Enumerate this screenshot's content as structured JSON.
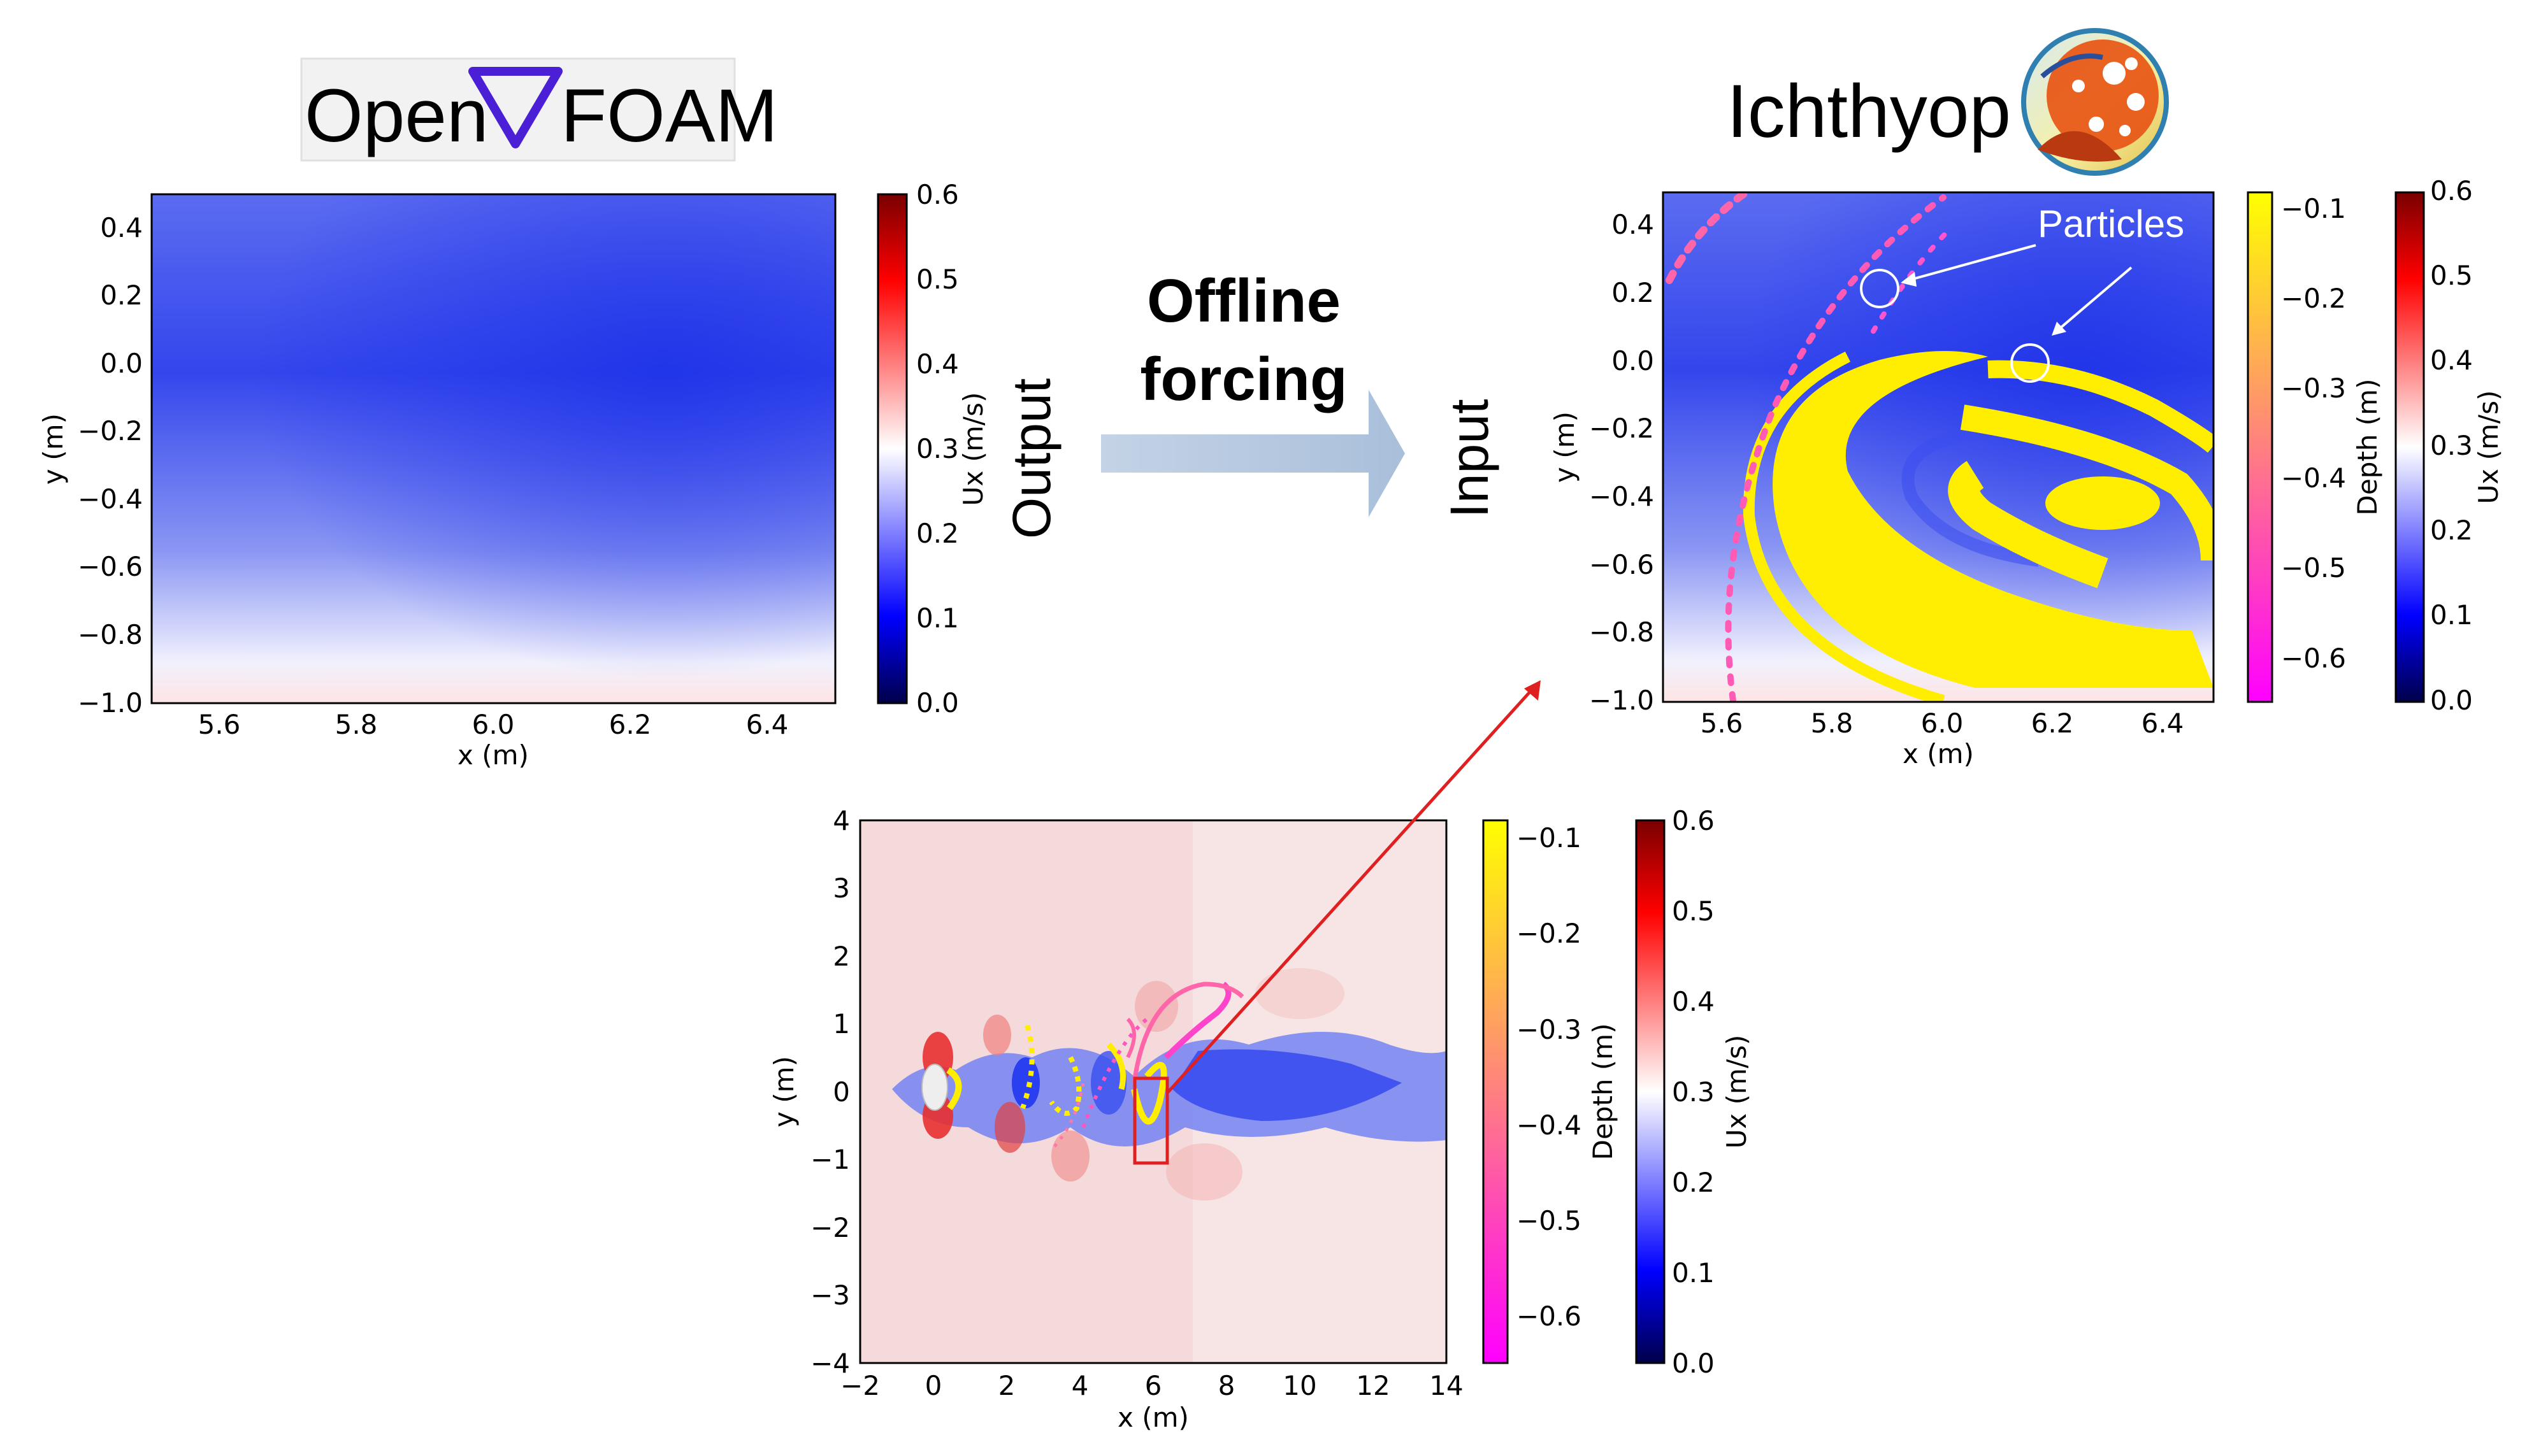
{
  "header": {
    "openfoam_logo_left": "Open",
    "openfoam_logo_right": "FOAM",
    "ichthyop_title": "Ichthyop"
  },
  "flow": {
    "arrow_title_line1": "Offline",
    "arrow_title_line2": "forcing",
    "output_label": "Output",
    "input_label": "Input",
    "particles_label": "Particles"
  },
  "colors": {
    "blue_field": "#3344ee",
    "particle_yellow": "#ffee00",
    "particle_magenta": "#ff44cc",
    "arrow_fill": "#b8cae0",
    "highlight_red": "#e02020"
  },
  "charts": {
    "openfoam_panel": {
      "type": "heatmap",
      "xlabel": "x (m)",
      "ylabel": "y (m)",
      "xlim": [
        5.5,
        6.5
      ],
      "ylim": [
        -1.0,
        0.5
      ],
      "xticks": [
        "5.6",
        "5.8",
        "6.0",
        "6.2",
        "6.4"
      ],
      "yticks": [
        "0.4",
        "0.2",
        "0.0",
        "−0.2",
        "−0.4",
        "−0.6",
        "−0.8",
        "−1.0"
      ],
      "colorbar": {
        "label": "Ux (m/s)",
        "range": [
          0.0,
          0.6
        ],
        "ticks": [
          "0.6",
          "0.5",
          "0.4",
          "0.3",
          "0.2",
          "0.1",
          "0.0"
        ]
      }
    },
    "ichthyop_panel": {
      "type": "scatter",
      "xlabel": "x (m)",
      "ylabel": "y (m)",
      "xlim": [
        5.5,
        6.5
      ],
      "ylim": [
        -1.0,
        0.5
      ],
      "xticks": [
        "5.6",
        "5.8",
        "6.0",
        "6.2",
        "6.4"
      ],
      "yticks": [
        "0.4",
        "0.2",
        "0.0",
        "−0.2",
        "−0.4",
        "−0.6",
        "−0.8",
        "−1.0"
      ],
      "depth_colorbar": {
        "label": "Depth (m)",
        "range": [
          -0.65,
          -0.07
        ],
        "ticks": [
          "−0.1",
          "−0.2",
          "−0.3",
          "−0.4",
          "−0.5",
          "−0.6"
        ]
      },
      "ux_colorbar": {
        "label": "Ux (m/s)",
        "range": [
          0.0,
          0.6
        ],
        "ticks": [
          "0.6",
          "0.5",
          "0.4",
          "0.3",
          "0.2",
          "0.1",
          "0.0"
        ]
      }
    },
    "overview_panel": {
      "type": "heatmap",
      "xlabel": "x (m)",
      "ylabel": "y (m)",
      "xlim": [
        -2,
        14
      ],
      "ylim": [
        -4,
        4
      ],
      "xticks": [
        "−2",
        "0",
        "2",
        "4",
        "6",
        "8",
        "10",
        "12",
        "14"
      ],
      "yticks": [
        "4",
        "3",
        "2",
        "1",
        "0",
        "−1",
        "−2",
        "−3",
        "−4"
      ],
      "highlight_box": {
        "x": [
          5.5,
          6.5
        ],
        "y": [
          -1.0,
          0.25
        ]
      },
      "depth_colorbar": {
        "label": "Depth (m)",
        "range": [
          -0.65,
          -0.07
        ],
        "ticks": [
          "−0.1",
          "−0.2",
          "−0.3",
          "−0.4",
          "−0.5",
          "−0.6"
        ]
      },
      "ux_colorbar": {
        "label": "Ux (m/s)",
        "range": [
          0.0,
          0.6
        ],
        "ticks": [
          "0.6",
          "0.5",
          "0.4",
          "0.3",
          "0.2",
          "0.1",
          "0.0"
        ]
      }
    }
  }
}
